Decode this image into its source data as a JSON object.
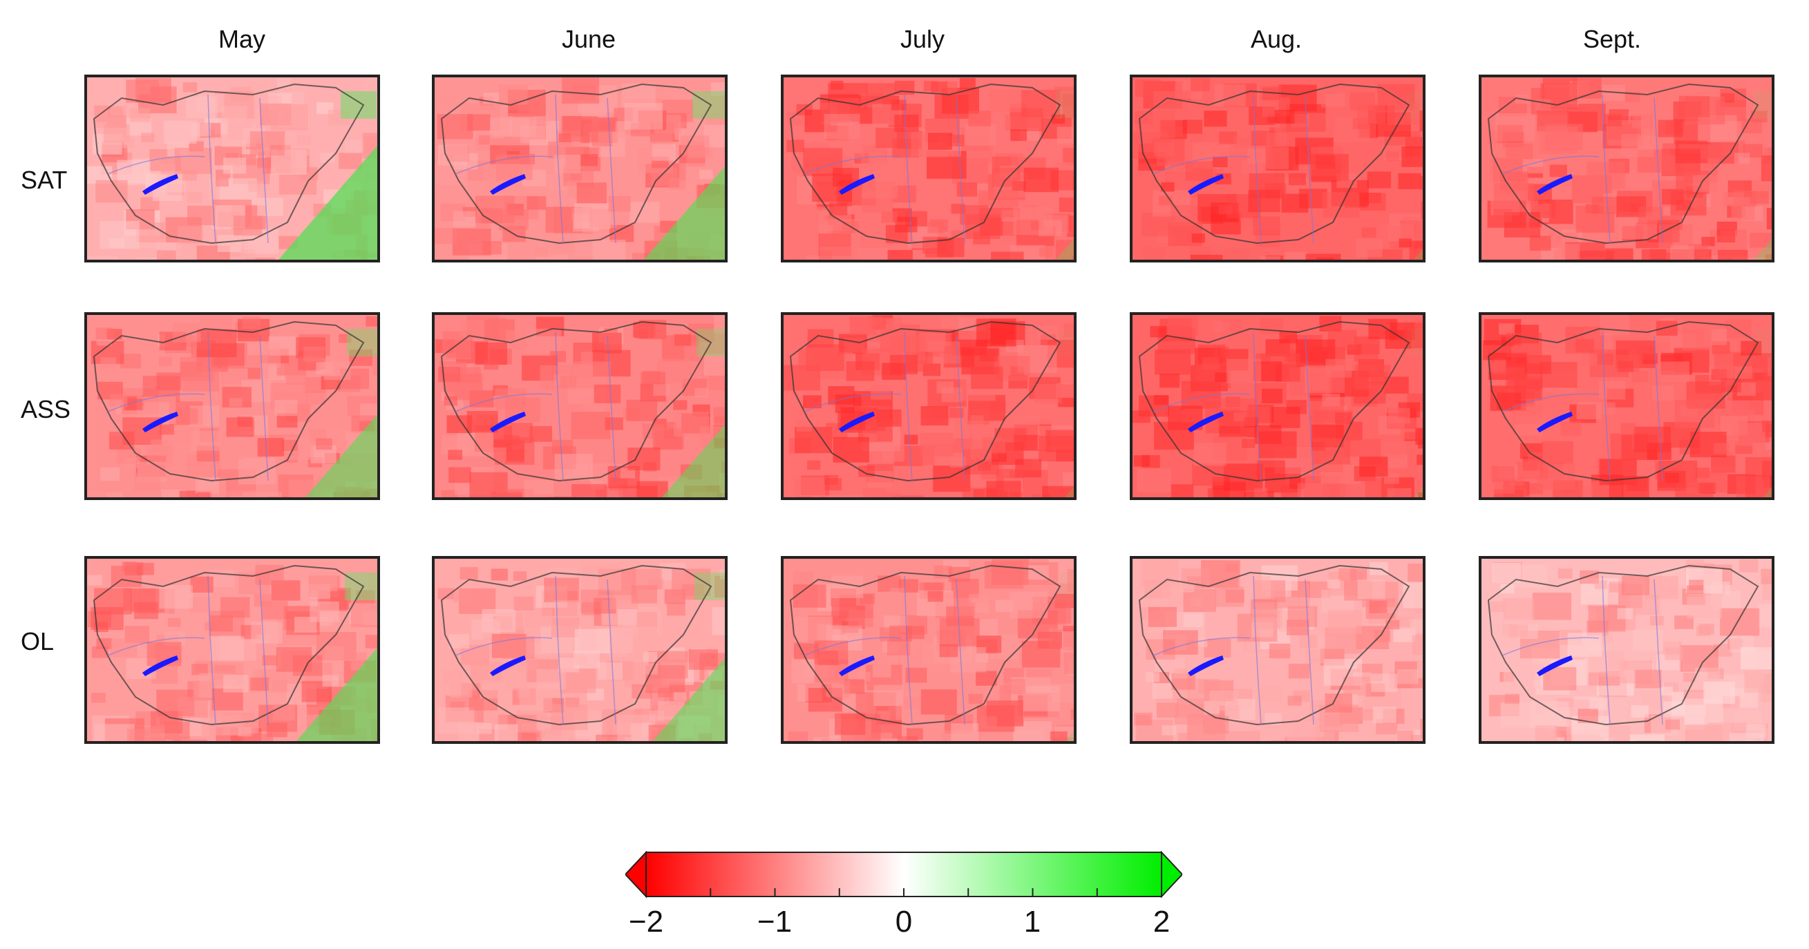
{
  "columns": [
    "May",
    "June",
    "July",
    "Aug.",
    "Sept."
  ],
  "rows": [
    "SAT",
    "ASS",
    "OL"
  ],
  "panel_intensity": [
    [
      0.45,
      0.6,
      0.78,
      0.85,
      0.75
    ],
    [
      0.62,
      0.68,
      0.8,
      0.85,
      0.82
    ],
    [
      0.55,
      0.48,
      0.62,
      0.45,
      0.38
    ]
  ],
  "panel_green": [
    [
      0.55,
      0.45,
      0.1,
      0.05,
      0.1
    ],
    [
      0.4,
      0.35,
      0.05,
      0.05,
      0.05
    ],
    [
      0.45,
      0.4,
      0.05,
      0.02,
      0.02
    ]
  ],
  "colorbar": {
    "min": -2,
    "max": 2,
    "ticks": [
      "−2",
      "−1",
      "0",
      "1",
      "2"
    ],
    "colors": {
      "low": "#ff0000",
      "mid": "#ffffff",
      "high": "#00ee00"
    }
  },
  "icons": {
    "lake": "lake-balaton-shape",
    "border": "country-border-lines",
    "rivers": "river-lines"
  }
}
